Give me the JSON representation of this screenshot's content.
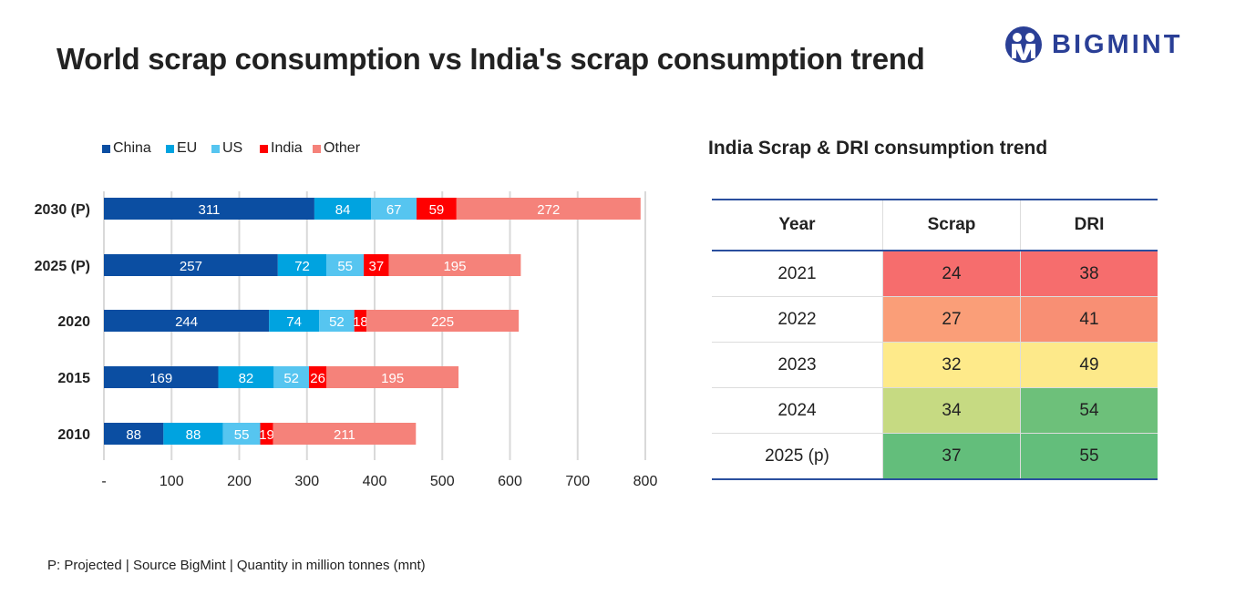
{
  "title": "World scrap consumption vs India's scrap consumption trend",
  "logo": {
    "text": "BIGMINT",
    "color": "#2A3F96"
  },
  "chart_data": {
    "type": "bar",
    "orientation": "horizontal",
    "stacked": true,
    "categories": [
      "2030 (P)",
      "2025 (P)",
      "2020",
      "2015",
      "2010"
    ],
    "series": [
      {
        "name": "China",
        "color": "#0B4EA2",
        "values": [
          311,
          257,
          244,
          169,
          88
        ]
      },
      {
        "name": "EU",
        "color": "#00A3E0",
        "values": [
          84,
          72,
          74,
          82,
          88
        ]
      },
      {
        "name": "US",
        "color": "#56C5F0",
        "values": [
          67,
          55,
          52,
          52,
          55
        ]
      },
      {
        "name": "India",
        "color": "#FF0000",
        "values": [
          59,
          37,
          18,
          26,
          19
        ]
      },
      {
        "name": "Other",
        "color": "#F5827A",
        "values": [
          272,
          195,
          225,
          195,
          211
        ]
      }
    ],
    "xlim": [
      0,
      800
    ],
    "xticks": [
      "-",
      "100",
      "200",
      "300",
      "400",
      "500",
      "600",
      "700",
      "800"
    ],
    "grid": true,
    "legend": "top-left"
  },
  "table": {
    "title": "India Scrap & DRI consumption trend",
    "headers": [
      "Year",
      "Scrap",
      "DRI"
    ],
    "rows": [
      {
        "year": "2021",
        "scrap": "24",
        "dri": "38",
        "scrap_color": "#F66D6D",
        "dri_color": "#F66D6D"
      },
      {
        "year": "2022",
        "scrap": "27",
        "dri": "41",
        "scrap_color": "#FA9E78",
        "dri_color": "#F88F74"
      },
      {
        "year": "2023",
        "scrap": "32",
        "dri": "49",
        "scrap_color": "#FEEA8A",
        "dri_color": "#FDE98A"
      },
      {
        "year": "2024",
        "scrap": "34",
        "dri": "54",
        "scrap_color": "#C6DA82",
        "dri_color": "#6DC07A"
      },
      {
        "year": "2025 (p)",
        "scrap": "37",
        "dri": "55",
        "scrap_color": "#63BE7B",
        "dri_color": "#63BE7B"
      }
    ]
  },
  "footnote": "P: Projected | Source BigMint | Quantity in million tonnes (mnt)"
}
